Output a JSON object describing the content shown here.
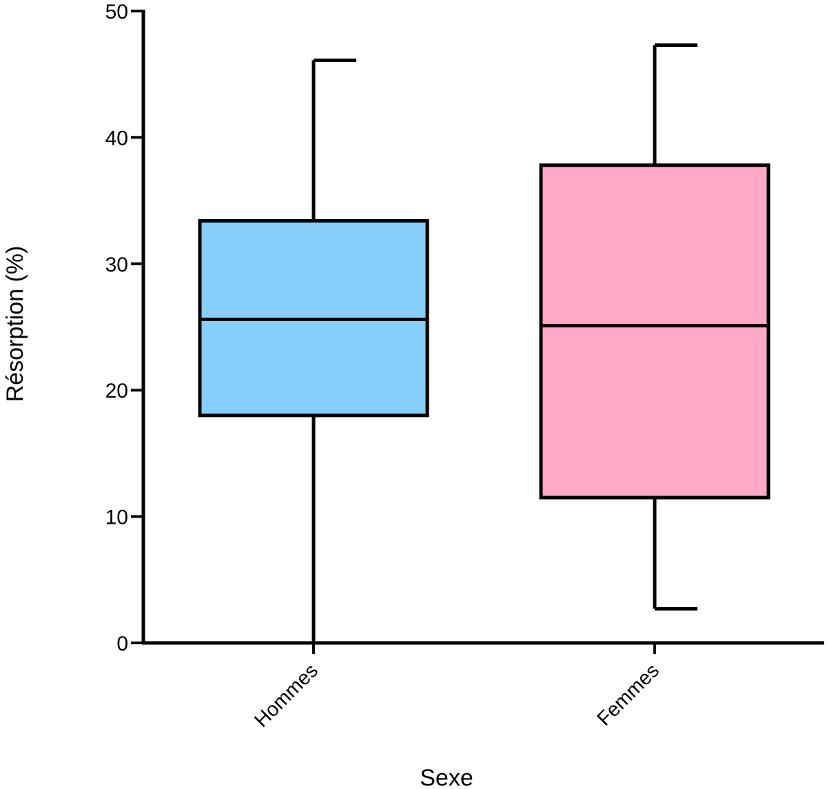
{
  "chart_data": {
    "type": "boxplot",
    "title": "",
    "xlabel": "Sexe",
    "ylabel": "Résorption (%)",
    "ylim": [
      0,
      50
    ],
    "yticks": [
      0,
      10,
      20,
      30,
      40,
      50
    ],
    "categories": [
      "Hommes",
      "Femmes"
    ],
    "boxes": [
      {
        "name": "Hommes",
        "min": 0,
        "q1": 18,
        "median": 25.6,
        "q3": 33.4,
        "max": 46.1,
        "color": "#87CEFA"
      },
      {
        "name": "Femmes",
        "min": 2.7,
        "q1": 11.5,
        "median": 25.1,
        "q3": 37.8,
        "max": 47.3,
        "color": "#FFA8C8"
      }
    ],
    "grid": false,
    "legend": "none"
  }
}
